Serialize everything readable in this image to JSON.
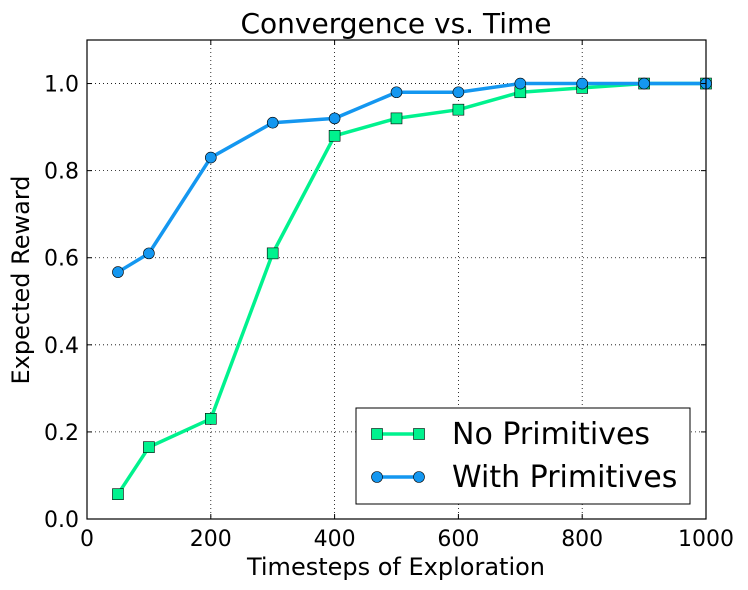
{
  "chart_data": {
    "type": "line",
    "title": "Convergence vs. Time",
    "xlabel": "Timesteps of Exploration",
    "ylabel": "Expected Reward",
    "xlim": [
      0,
      1000
    ],
    "ylim": [
      0,
      1.1
    ],
    "xticks": [
      0,
      200,
      400,
      600,
      800,
      1000
    ],
    "xtick_labels": [
      "0",
      "200",
      "400",
      "600",
      "800",
      "1000"
    ],
    "yticks": [
      0,
      0.2,
      0.4,
      0.6,
      0.8,
      1.0
    ],
    "ytick_labels": [
      "0.0",
      "0.2",
      "0.4",
      "0.6",
      "0.8",
      "1.0"
    ],
    "grid": true,
    "legend_position": "lower-right",
    "series": [
      {
        "name": "No Primitives",
        "color": "#00f28e",
        "marker": "square",
        "x": [
          50,
          100,
          200,
          300,
          400,
          500,
          600,
          700,
          800,
          900,
          1000
        ],
        "y": [
          0.057,
          0.165,
          0.23,
          0.61,
          0.88,
          0.92,
          0.94,
          0.98,
          0.99,
          1.0,
          1.0
        ]
      },
      {
        "name": "With Primitives",
        "color": "#1497f0",
        "marker": "circle",
        "x": [
          50,
          100,
          200,
          300,
          400,
          500,
          600,
          700,
          800,
          900,
          1000
        ],
        "y": [
          0.567,
          0.61,
          0.83,
          0.91,
          0.92,
          0.98,
          0.98,
          1.0,
          1.0,
          1.0,
          1.0
        ]
      }
    ]
  }
}
